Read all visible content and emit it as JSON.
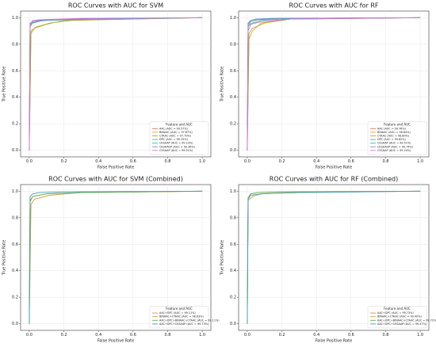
{
  "chart_data": [
    {
      "type": "line",
      "title": "ROC Curves with AUC for SVM",
      "x_label": "False Positive Rate",
      "y_label": "True Positive Rate",
      "legend_title": "Feature and AUC",
      "legend": "lower right",
      "grid": true,
      "xlim": [
        -0.05,
        1.05
      ],
      "ylim": [
        -0.05,
        1.05
      ],
      "xticks": [
        {
          "value": 0,
          "label": "0.0"
        },
        0.2,
        0.4,
        0.6,
        0.8,
        {
          "value": 1,
          "label": "1.0"
        }
      ],
      "yticks": [
        {
          "value": 0,
          "label": "0.0"
        },
        0.2,
        0.4,
        0.6,
        0.8,
        {
          "value": 1,
          "label": "1.0"
        }
      ],
      "series": [
        {
          "name": "AAC (AUC = 99.57%)",
          "color": "#e8735a",
          "x": [
            0,
            0.005,
            0.02,
            0.1,
            0.3,
            1
          ],
          "values": [
            0,
            0.93,
            0.97,
            0.98,
            0.99,
            1
          ]
        },
        {
          "name": "BINAAC (AUC = 97.67%)",
          "color": "#f0a030",
          "x": [
            0,
            0.01,
            0.03,
            0.1,
            0.2,
            1
          ],
          "values": [
            0,
            0.88,
            0.92,
            0.95,
            0.98,
            1
          ]
        },
        {
          "name": "CTAAC (AUC = 97.70%)",
          "color": "#a8b030",
          "x": [
            0,
            0.01,
            0.04,
            0.12,
            0.25,
            1
          ],
          "values": [
            0,
            0.9,
            0.93,
            0.96,
            0.98,
            1
          ]
        },
        {
          "name": "DPC (AUC = 99.15%)",
          "color": "#50b070",
          "x": [
            0,
            0.005,
            0.02,
            0.08,
            0.3,
            1
          ],
          "values": [
            0,
            0.94,
            0.96,
            0.98,
            0.99,
            1
          ]
        },
        {
          "name": "CKSAAP (AUC = 99.23%)",
          "color": "#40b0c0",
          "x": [
            0,
            0.005,
            0.03,
            0.1,
            0.4,
            1
          ],
          "values": [
            0,
            0.95,
            0.97,
            0.98,
            0.99,
            1
          ]
        },
        {
          "name": "CKSAAGP (AUC = 99.36%)",
          "color": "#7090e0",
          "x": [
            0,
            0.005,
            0.02,
            0.06,
            0.3,
            1
          ],
          "values": [
            0,
            0.96,
            0.97,
            0.98,
            0.99,
            1
          ]
        },
        {
          "name": "C5SAAP (AUC = 99.51%)",
          "color": "#e070d0",
          "x": [
            0,
            0.005,
            0.02,
            0.07,
            0.3,
            1
          ],
          "values": [
            0,
            0.95,
            0.98,
            0.985,
            0.995,
            1
          ]
        }
      ]
    },
    {
      "type": "line",
      "title": "ROC Curves with AUC for RF",
      "x_label": "False Positive Rate",
      "y_label": "True Positive Rate",
      "legend_title": "Feature and AUC",
      "legend": "lower right",
      "grid": true,
      "xlim": [
        -0.05,
        1.05
      ],
      "ylim": [
        -0.05,
        1.05
      ],
      "xticks": [
        {
          "value": 0,
          "label": "0.0"
        },
        0.2,
        0.4,
        0.6,
        0.8,
        {
          "value": 1,
          "label": "1.0"
        }
      ],
      "yticks": [
        {
          "value": 0,
          "label": "0.0"
        },
        0.2,
        0.4,
        0.6,
        0.8,
        {
          "value": 1,
          "label": "1.0"
        }
      ],
      "series": [
        {
          "name": "AAC (AUC = 99.76%)",
          "color": "#e8735a",
          "x": [
            0,
            0.005,
            0.02,
            0.06,
            0.2,
            1
          ],
          "values": [
            0,
            0.95,
            0.98,
            0.99,
            0.995,
            1
          ]
        },
        {
          "name": "BINAAC (AUC = 98.84%)",
          "color": "#f0a030",
          "x": [
            0,
            0.01,
            0.03,
            0.08,
            0.25,
            1
          ],
          "values": [
            0,
            0.84,
            0.9,
            0.96,
            0.99,
            1
          ]
        },
        {
          "name": "CTAAC (AUC = 98.89%)",
          "color": "#a8b030",
          "x": [
            0,
            0.01,
            0.03,
            0.1,
            0.25,
            1
          ],
          "values": [
            0,
            0.88,
            0.92,
            0.96,
            0.99,
            1
          ]
        },
        {
          "name": "DPC (AUC = 99.62%)",
          "color": "#50b070",
          "x": [
            0,
            0.005,
            0.02,
            0.06,
            0.2,
            1
          ],
          "values": [
            0,
            0.93,
            0.97,
            0.985,
            0.995,
            1
          ]
        },
        {
          "name": "CKSAAP (AUC = 99.51%)",
          "color": "#40b0c0",
          "x": [
            0,
            0.005,
            0.03,
            0.08,
            0.2,
            1
          ],
          "values": [
            0,
            0.94,
            0.96,
            0.98,
            0.99,
            1
          ]
        },
        {
          "name": "CKSAAGP (AUC = 99.74%)",
          "color": "#7090e0",
          "x": [
            0,
            0.005,
            0.02,
            0.05,
            0.15,
            1
          ],
          "values": [
            0,
            0.96,
            0.98,
            0.99,
            0.995,
            1
          ]
        },
        {
          "name": "C5SAAP (AUC = 99.24%)",
          "color": "#e070d0",
          "x": [
            0,
            0.005,
            0.02,
            0.08,
            0.25,
            1
          ],
          "values": [
            0,
            0.9,
            0.95,
            0.97,
            0.99,
            1
          ]
        }
      ]
    },
    {
      "type": "line",
      "title": "ROC Curves with AUC for SVM (Combined)",
      "x_label": "False Positive Rate",
      "y_label": "True Positive Rate",
      "legend_title": "Feature and AUC",
      "legend": "lower right",
      "grid": true,
      "xlim": [
        -0.05,
        1.05
      ],
      "ylim": [
        -0.05,
        1.05
      ],
      "xticks": [
        {
          "value": 0,
          "label": "0.0"
        },
        0.2,
        0.4,
        0.6,
        0.8,
        {
          "value": 1,
          "label": "1.0"
        }
      ],
      "yticks": [
        {
          "value": 0,
          "label": "0.0"
        },
        0.2,
        0.4,
        0.6,
        0.8,
        {
          "value": 1,
          "label": "1.0"
        }
      ],
      "series": [
        {
          "name": "AAC+DPC (AUC = 99.11%)",
          "color": "#f08060",
          "x": [
            0,
            0.005,
            0.02,
            0.1,
            0.3,
            1
          ],
          "values": [
            0,
            0.92,
            0.96,
            0.98,
            0.99,
            1
          ]
        },
        {
          "name": "BINAAC+CTAAC (AUC = 98.63%)",
          "color": "#d0a040",
          "x": [
            0,
            0.01,
            0.03,
            0.12,
            0.3,
            1
          ],
          "values": [
            0,
            0.9,
            0.94,
            0.97,
            0.99,
            1
          ]
        },
        {
          "name": "AAC+DPC+BINAAC+CTAAC (AUC = 99.11%)",
          "color": "#60b060",
          "x": [
            0,
            0.005,
            0.02,
            0.1,
            0.3,
            1
          ],
          "values": [
            0,
            0.93,
            0.96,
            0.98,
            0.99,
            1
          ]
        },
        {
          "name": "AAC+DPC+CKSAAP (AUC = 99.73%)",
          "color": "#40a0b0",
          "x": [
            0,
            0.005,
            0.02,
            0.06,
            0.2,
            1
          ],
          "values": [
            0,
            0.96,
            0.98,
            0.99,
            0.995,
            1
          ]
        }
      ]
    },
    {
      "type": "line",
      "title": "ROC Curves with AUC for RF (Combined)",
      "x_label": "False Positive Rate",
      "y_label": "True Positive Rate",
      "legend_title": "Feature and AUC",
      "legend": "lower right",
      "grid": true,
      "xlim": [
        -0.05,
        1.05
      ],
      "ylim": [
        -0.05,
        1.05
      ],
      "xticks": [
        {
          "value": 0,
          "label": "0.0"
        },
        0.2,
        0.4,
        0.6,
        0.8,
        {
          "value": 1,
          "label": "1.0"
        }
      ],
      "yticks": [
        {
          "value": 0,
          "label": "0.0"
        },
        0.2,
        0.4,
        0.6,
        0.8,
        {
          "value": 1,
          "label": "1.0"
        }
      ],
      "series": [
        {
          "name": "AAC+DPC (AUC = 99.73%)",
          "color": "#f08060",
          "x": [
            0,
            0.005,
            0.02,
            0.06,
            0.2,
            1
          ],
          "values": [
            0,
            0.95,
            0.98,
            0.99,
            0.995,
            1
          ]
        },
        {
          "name": "BINAAC+CTAAC (AUC = 99.40%)",
          "color": "#d0a040",
          "x": [
            0,
            0.005,
            0.03,
            0.08,
            0.25,
            1
          ],
          "values": [
            0,
            0.93,
            0.96,
            0.98,
            0.99,
            1
          ]
        },
        {
          "name": "AAC+DPC+BINAAC+CTAAC (AUC = 99.72%)",
          "color": "#60b060",
          "x": [
            0,
            0.005,
            0.02,
            0.06,
            0.2,
            1
          ],
          "values": [
            0,
            0.95,
            0.98,
            0.99,
            0.995,
            1
          ]
        },
        {
          "name": "AAC+DPC+CKSAAP (AUC = 99.47%)",
          "color": "#40a0b0",
          "x": [
            0,
            0.005,
            0.02,
            0.08,
            0.3,
            1
          ],
          "values": [
            0,
            0.94,
            0.97,
            0.98,
            0.99,
            1
          ]
        }
      ]
    }
  ]
}
